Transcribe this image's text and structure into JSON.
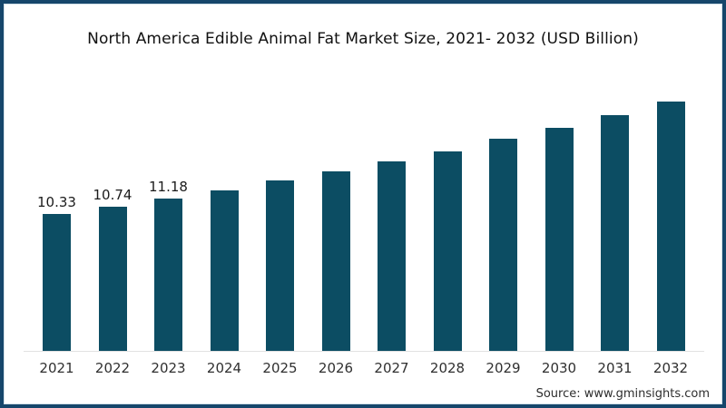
{
  "source": "Source: www.gminsights.com",
  "colors": {
    "bar": "#0c4d63",
    "frame_border": "#16466b",
    "axis_line": "#e2e2e2",
    "title_text": "#111111",
    "tick_text": "#303030",
    "label_text": "#1b1b1b",
    "source_text": "#2d2d2d",
    "background": "#ffffff"
  },
  "chart_data": {
    "type": "bar",
    "title": "North America Edible Animal Fat Market Size, 2021- 2032 (USD Billion)",
    "xlabel": "",
    "ylabel": "",
    "categories": [
      "2021",
      "2022",
      "2023",
      "2024",
      "2025",
      "2026",
      "2027",
      "2028",
      "2029",
      "2030",
      "2031",
      "2032"
    ],
    "values": [
      10.33,
      10.74,
      11.18,
      11.65,
      12.2,
      12.7,
      13.25,
      13.8,
      14.5,
      15.1,
      15.8,
      16.55
    ],
    "data_labels": [
      "10.33",
      "10.74",
      "11.18",
      "",
      "",
      "",
      "",
      "",
      "",
      "",
      "",
      ""
    ],
    "ylim": [
      2.78,
      17.28
    ],
    "grid": false,
    "legend": false
  }
}
